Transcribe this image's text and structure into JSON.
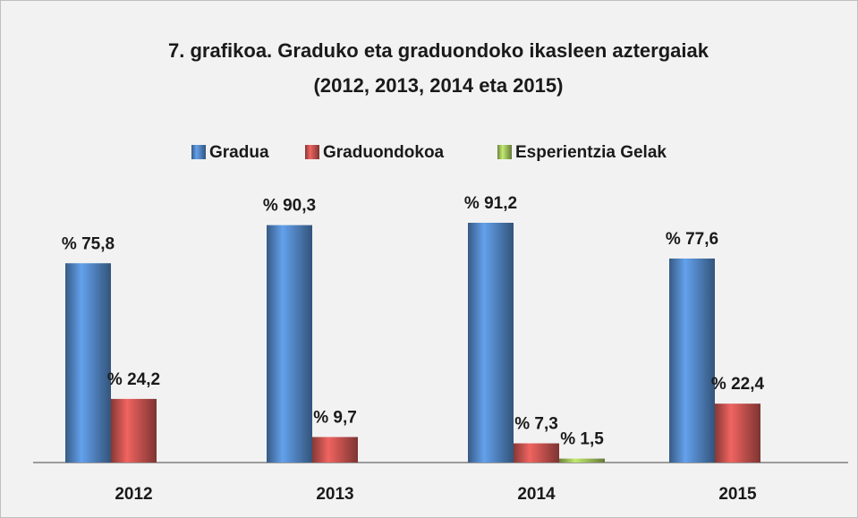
{
  "chart_data": {
    "type": "bar",
    "title": [
      "7. grafikoa. Graduko eta graduondoko ikasleen aztergaiak",
      "(2012, 2013,  2014 eta 2015)"
    ],
    "categories": [
      "2012",
      "2013",
      "2014",
      "2015"
    ],
    "series": [
      {
        "name": "Gradua",
        "color": "#4f81bd",
        "values": [
          75.8,
          90.3,
          91.2,
          77.6
        ],
        "value_labels": [
          "% 75,8",
          "% 90,3",
          "% 91,2",
          "% 77,6"
        ]
      },
      {
        "name": "Graduondokoa",
        "color": "#c0504d",
        "values": [
          24.2,
          9.7,
          7.3,
          22.4
        ],
        "value_labels": [
          "% 24,2",
          "% 9,7",
          "% 7,3",
          "% 22,4"
        ]
      },
      {
        "name": "Esperientzia Gelak",
        "color": "#9bbb59",
        "values": [
          null,
          null,
          1.5,
          null
        ],
        "value_labels": [
          null,
          null,
          "% 1,5",
          null
        ]
      }
    ],
    "legend": "top"
  }
}
